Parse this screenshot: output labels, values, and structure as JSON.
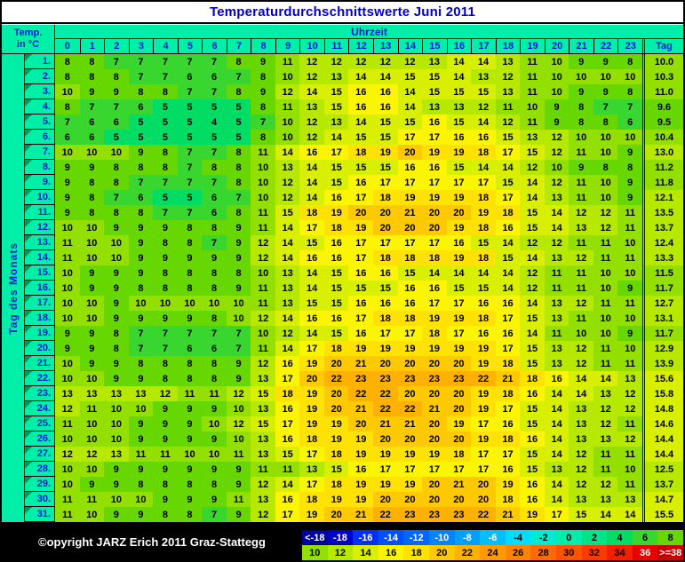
{
  "title": "Temperaturdurchschnittswerte Juni 2011",
  "header": {
    "temp_label_line1": "Temp.",
    "temp_label_line2": "in °C",
    "uhrzeit_label": "Uhrzeit",
    "tag_label": "Tag"
  },
  "side_label": "Tag des Monats",
  "footer": {
    "copyright": "©opyright JARZ Erich 2011 Graz-Stattegg"
  },
  "value_colors": {
    "4": "#00DC64",
    "6": "#38D62E",
    "8": "#66D700",
    "10": "#92DF00",
    "12": "#B6E800",
    "14": "#D8EF00",
    "16": "#FBF600",
    "18": "#FFE200",
    "20": "#FFC900",
    "22": "#FFB100"
  },
  "legend": {
    "row1": [
      {
        "label": "<-18",
        "color": "#0000A0",
        "text": "#FFFFFF"
      },
      {
        "label": "-18",
        "color": "#0000C8",
        "text": "#FFFFFF"
      },
      {
        "label": "-16",
        "color": "#0030FF",
        "text": "#FFFFFF"
      },
      {
        "label": "-14",
        "color": "#0050FF",
        "text": "#FFFFFF"
      },
      {
        "label": "-12",
        "color": "#0068FF",
        "text": "#FFFFFF"
      },
      {
        "label": "-10",
        "color": "#0084FF",
        "text": "#FFFFFF"
      },
      {
        "label": "-8",
        "color": "#00A0FF",
        "text": "#FFFFFF"
      },
      {
        "label": "-6",
        "color": "#00BEFF",
        "text": "#FFFFFF"
      },
      {
        "label": "-4",
        "color": "#00DCFF",
        "text": "#000000"
      },
      {
        "label": "-2",
        "color": "#00EAD2",
        "text": "#000000"
      },
      {
        "label": "0",
        "color": "#00ECAC",
        "text": "#000000"
      },
      {
        "label": "2",
        "color": "#00E387",
        "text": "#000000"
      },
      {
        "label": "4",
        "color": "#00DC64",
        "text": "#000000"
      },
      {
        "label": "6",
        "color": "#38D62E",
        "text": "#000000"
      },
      {
        "label": "8",
        "color": "#66D700",
        "text": "#000000"
      }
    ],
    "row2": [
      {
        "label": "10",
        "color": "#92DF00",
        "text": "#000000"
      },
      {
        "label": "12",
        "color": "#B6E800",
        "text": "#000000"
      },
      {
        "label": "14",
        "color": "#D8EF00",
        "text": "#000000"
      },
      {
        "label": "16",
        "color": "#FBF600",
        "text": "#000000"
      },
      {
        "label": "18",
        "color": "#FFE200",
        "text": "#000000"
      },
      {
        "label": "20",
        "color": "#FFC900",
        "text": "#000000"
      },
      {
        "label": "22",
        "color": "#FFB100",
        "text": "#000000"
      },
      {
        "label": "24",
        "color": "#FF9A00",
        "text": "#000000"
      },
      {
        "label": "26",
        "color": "#FF8200",
        "text": "#000000"
      },
      {
        "label": "28",
        "color": "#FF6A00",
        "text": "#000000"
      },
      {
        "label": "30",
        "color": "#FF5200",
        "text": "#000000"
      },
      {
        "label": "32",
        "color": "#FF3A00",
        "text": "#000000"
      },
      {
        "label": "34",
        "color": "#F22000",
        "text": "#000000"
      },
      {
        "label": "36",
        "color": "#E60000",
        "text": "#FFFFFF"
      },
      {
        "label": ">=38",
        "color": "#C80000",
        "text": "#FFFFFF"
      }
    ]
  },
  "chart_data": {
    "type": "heatmap",
    "title": "Temperaturdurchschnittswerte Juni 2011",
    "xlabel": "Uhrzeit",
    "ylabel": "Tag des Monats",
    "x": [
      0,
      1,
      2,
      3,
      4,
      5,
      6,
      7,
      8,
      9,
      10,
      11,
      12,
      13,
      14,
      15,
      16,
      17,
      18,
      19,
      20,
      21,
      22,
      23
    ],
    "avg_column_label": "Tag",
    "color_bucket_size": 2,
    "series": [
      {
        "day": "1.",
        "values": [
          8,
          8,
          7,
          7,
          7,
          7,
          7,
          8,
          9,
          11,
          12,
          12,
          12,
          12,
          12,
          13,
          14,
          14,
          13,
          11,
          10,
          9,
          9,
          8
        ],
        "avg": "10.0"
      },
      {
        "day": "2.",
        "values": [
          8,
          8,
          8,
          7,
          7,
          6,
          6,
          7,
          8,
          10,
          12,
          13,
          14,
          14,
          15,
          15,
          14,
          13,
          12,
          11,
          10,
          10,
          10,
          10
        ],
        "avg": "10.3"
      },
      {
        "day": "3.",
        "values": [
          10,
          9,
          9,
          8,
          8,
          7,
          7,
          8,
          9,
          12,
          14,
          15,
          16,
          16,
          14,
          15,
          15,
          15,
          13,
          11,
          10,
          9,
          9,
          8
        ],
        "avg": "11.0"
      },
      {
        "day": "4.",
        "values": [
          8,
          7,
          7,
          6,
          5,
          5,
          5,
          5,
          8,
          11,
          13,
          15,
          16,
          16,
          14,
          13,
          13,
          12,
          11,
          10,
          9,
          8,
          7,
          7
        ],
        "avg": "9.6"
      },
      {
        "day": "5.",
        "values": [
          7,
          6,
          6,
          5,
          5,
          5,
          4,
          5,
          7,
          10,
          12,
          13,
          14,
          15,
          15,
          16,
          15,
          14,
          12,
          11,
          9,
          8,
          8,
          6
        ],
        "avg": "9.5"
      },
      {
        "day": "6.",
        "values": [
          6,
          6,
          5,
          5,
          5,
          5,
          5,
          5,
          8,
          10,
          12,
          14,
          15,
          15,
          17,
          17,
          16,
          16,
          15,
          13,
          12,
          10,
          10,
          10
        ],
        "avg": "10.4"
      },
      {
        "day": "7.",
        "values": [
          10,
          10,
          10,
          9,
          8,
          7,
          7,
          8,
          11,
          14,
          16,
          17,
          18,
          19,
          20,
          19,
          19,
          18,
          17,
          15,
          12,
          11,
          10,
          9
        ],
        "avg": "13.0"
      },
      {
        "day": "8.",
        "values": [
          9,
          9,
          8,
          8,
          8,
          7,
          8,
          8,
          10,
          13,
          14,
          15,
          15,
          15,
          16,
          16,
          15,
          14,
          14,
          12,
          10,
          9,
          8,
          8
        ],
        "avg": "11.2"
      },
      {
        "day": "9.",
        "values": [
          9,
          8,
          8,
          7,
          7,
          7,
          7,
          8,
          10,
          12,
          14,
          15,
          16,
          17,
          17,
          17,
          17,
          17,
          15,
          14,
          12,
          11,
          10,
          9
        ],
        "avg": "11.8"
      },
      {
        "day": "10.",
        "values": [
          9,
          8,
          7,
          6,
          5,
          5,
          6,
          7,
          10,
          12,
          14,
          16,
          17,
          18,
          19,
          19,
          19,
          18,
          17,
          14,
          13,
          11,
          10,
          9
        ],
        "avg": "12.1"
      },
      {
        "day": "11.",
        "values": [
          9,
          8,
          8,
          8,
          7,
          7,
          6,
          8,
          11,
          15,
          18,
          19,
          20,
          20,
          21,
          20,
          20,
          19,
          18,
          15,
          14,
          12,
          12,
          11
        ],
        "avg": "13.5"
      },
      {
        "day": "12.",
        "values": [
          10,
          10,
          9,
          9,
          9,
          8,
          8,
          9,
          11,
          14,
          17,
          18,
          19,
          20,
          20,
          20,
          19,
          18,
          16,
          15,
          14,
          13,
          12,
          11
        ],
        "avg": "13.7"
      },
      {
        "day": "13.",
        "values": [
          11,
          10,
          10,
          9,
          8,
          8,
          7,
          9,
          12,
          14,
          15,
          16,
          17,
          17,
          17,
          17,
          16,
          15,
          14,
          12,
          12,
          11,
          11,
          10
        ],
        "avg": "12.4"
      },
      {
        "day": "14.",
        "values": [
          11,
          10,
          10,
          9,
          9,
          9,
          9,
          9,
          12,
          14,
          16,
          16,
          17,
          18,
          18,
          18,
          19,
          18,
          15,
          14,
          13,
          12,
          11,
          11
        ],
        "avg": "13.3"
      },
      {
        "day": "15.",
        "values": [
          10,
          9,
          9,
          9,
          8,
          8,
          8,
          8,
          10,
          13,
          14,
          15,
          16,
          16,
          15,
          14,
          14,
          14,
          14,
          12,
          11,
          11,
          10,
          10
        ],
        "avg": "11.5"
      },
      {
        "day": "16.",
        "values": [
          10,
          9,
          9,
          8,
          8,
          8,
          8,
          9,
          11,
          13,
          14,
          15,
          15,
          15,
          16,
          16,
          15,
          15,
          14,
          12,
          11,
          11,
          10,
          9
        ],
        "avg": "11.7"
      },
      {
        "day": "17.",
        "values": [
          10,
          10,
          9,
          10,
          10,
          10,
          10,
          10,
          11,
          13,
          15,
          15,
          16,
          16,
          16,
          17,
          17,
          16,
          16,
          14,
          13,
          12,
          11,
          11
        ],
        "avg": "12.7"
      },
      {
        "day": "18.",
        "values": [
          10,
          10,
          9,
          9,
          9,
          9,
          8,
          10,
          12,
          14,
          16,
          16,
          17,
          18,
          18,
          19,
          19,
          18,
          17,
          15,
          13,
          11,
          10,
          10
        ],
        "avg": "13.1"
      },
      {
        "day": "19.",
        "values": [
          9,
          9,
          8,
          7,
          7,
          7,
          7,
          7,
          10,
          12,
          14,
          15,
          16,
          17,
          17,
          18,
          17,
          16,
          16,
          14,
          11,
          10,
          10,
          9
        ],
        "avg": "11.7"
      },
      {
        "day": "20.",
        "values": [
          9,
          9,
          8,
          7,
          7,
          6,
          6,
          7,
          11,
          14,
          17,
          18,
          19,
          19,
          19,
          19,
          19,
          19,
          17,
          15,
          13,
          12,
          11,
          10
        ],
        "avg": "12.9"
      },
      {
        "day": "21.",
        "values": [
          10,
          9,
          9,
          8,
          8,
          8,
          8,
          9,
          12,
          16,
          19,
          20,
          21,
          20,
          20,
          20,
          20,
          19,
          18,
          15,
          13,
          12,
          11,
          11
        ],
        "avg": "13.9"
      },
      {
        "day": "22.",
        "values": [
          10,
          10,
          9,
          9,
          8,
          8,
          8,
          9,
          13,
          17,
          20,
          22,
          23,
          23,
          23,
          23,
          23,
          22,
          21,
          18,
          16,
          14,
          14,
          13
        ],
        "avg": "15.6"
      },
      {
        "day": "23.",
        "values": [
          13,
          13,
          13,
          13,
          12,
          11,
          11,
          12,
          15,
          18,
          19,
          20,
          22,
          22,
          20,
          20,
          20,
          19,
          18,
          16,
          14,
          14,
          13,
          12
        ],
        "avg": "15.8"
      },
      {
        "day": "24.",
        "values": [
          12,
          11,
          10,
          10,
          9,
          9,
          9,
          10,
          13,
          16,
          19,
          20,
          21,
          22,
          22,
          21,
          20,
          19,
          17,
          15,
          14,
          13,
          12,
          12
        ],
        "avg": "14.8"
      },
      {
        "day": "25.",
        "values": [
          11,
          10,
          10,
          9,
          9,
          9,
          10,
          12,
          15,
          17,
          19,
          19,
          20,
          21,
          21,
          20,
          19,
          17,
          16,
          15,
          14,
          13,
          12,
          11
        ],
        "avg": "14.6"
      },
      {
        "day": "26.",
        "values": [
          10,
          10,
          10,
          9,
          9,
          9,
          9,
          10,
          13,
          16,
          18,
          19,
          19,
          20,
          20,
          20,
          20,
          19,
          18,
          16,
          14,
          13,
          13,
          12
        ],
        "avg": "14.4"
      },
      {
        "day": "27.",
        "values": [
          12,
          12,
          13,
          11,
          11,
          10,
          10,
          11,
          13,
          15,
          17,
          18,
          19,
          19,
          19,
          19,
          18,
          17,
          17,
          15,
          14,
          12,
          11,
          11
        ],
        "avg": "14.4"
      },
      {
        "day": "28.",
        "values": [
          10,
          10,
          9,
          9,
          9,
          9,
          9,
          9,
          11,
          11,
          13,
          15,
          16,
          17,
          17,
          17,
          17,
          17,
          16,
          15,
          13,
          12,
          11,
          10
        ],
        "avg": "12.5"
      },
      {
        "day": "29.",
        "values": [
          10,
          9,
          9,
          8,
          8,
          8,
          8,
          9,
          12,
          14,
          17,
          18,
          19,
          19,
          19,
          20,
          21,
          20,
          19,
          16,
          14,
          12,
          12,
          11
        ],
        "avg": "13.7"
      },
      {
        "day": "30.",
        "values": [
          11,
          11,
          10,
          10,
          9,
          9,
          9,
          11,
          13,
          16,
          18,
          19,
          19,
          20,
          20,
          20,
          20,
          20,
          18,
          16,
          14,
          13,
          13,
          13
        ],
        "avg": "14.7"
      },
      {
        "day": "31.",
        "values": [
          11,
          10,
          9,
          9,
          8,
          8,
          7,
          9,
          12,
          17,
          19,
          20,
          21,
          22,
          23,
          23,
          23,
          22,
          21,
          19,
          17,
          15,
          14,
          14
        ],
        "avg": "15.5"
      }
    ]
  }
}
